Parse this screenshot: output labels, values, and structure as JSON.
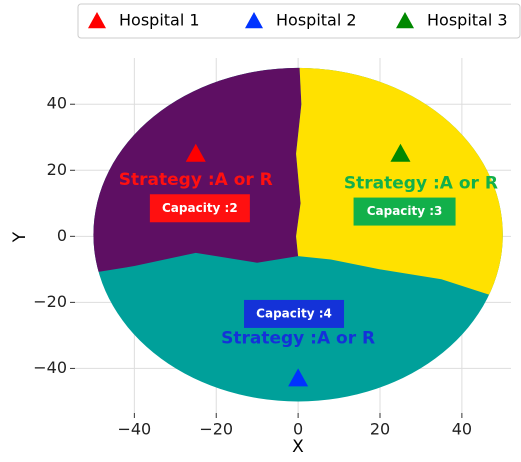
{
  "chart_data": {
    "type": "scatter",
    "xlabel": "X",
    "ylabel": "Y",
    "xlim": [
      -54.5,
      52
    ],
    "ylim": [
      -53.5,
      54
    ],
    "xticks": [
      {
        "value": -40,
        "label": "−40"
      },
      {
        "value": -20,
        "label": "−20"
      },
      0,
      20,
      40
    ],
    "yticks": [
      {
        "value": -40,
        "label": "−40"
      },
      {
        "value": -20,
        "label": "−20"
      },
      0,
      20,
      40
    ],
    "grid": true,
    "legend": "top",
    "series": [
      {
        "name": "Hospital 1",
        "color": "#ff0000",
        "x": [
          -25
        ],
        "values": [
          25
        ]
      },
      {
        "name": "Hospital 2",
        "color": "#0033ff",
        "x": [
          0
        ],
        "values": [
          -43
        ]
      },
      {
        "name": "Hospital 3",
        "color": "#008800",
        "x": [
          25
        ],
        "values": [
          25
        ]
      }
    ],
    "region_colors": [
      "#5e0f63",
      "#ffe100",
      "#00a09a"
    ],
    "annotations": [
      {
        "strategy": "Strategy :A or R",
        "capacity": "Capacity :2",
        "color": "#ff1010"
      },
      {
        "strategy": "Strategy :A or R",
        "capacity": "Capacity :4",
        "color": "#1432d8"
      },
      {
        "strategy": "Strategy :A or R",
        "capacity": "Capacity :3",
        "color": "#12b04a"
      }
    ]
  }
}
